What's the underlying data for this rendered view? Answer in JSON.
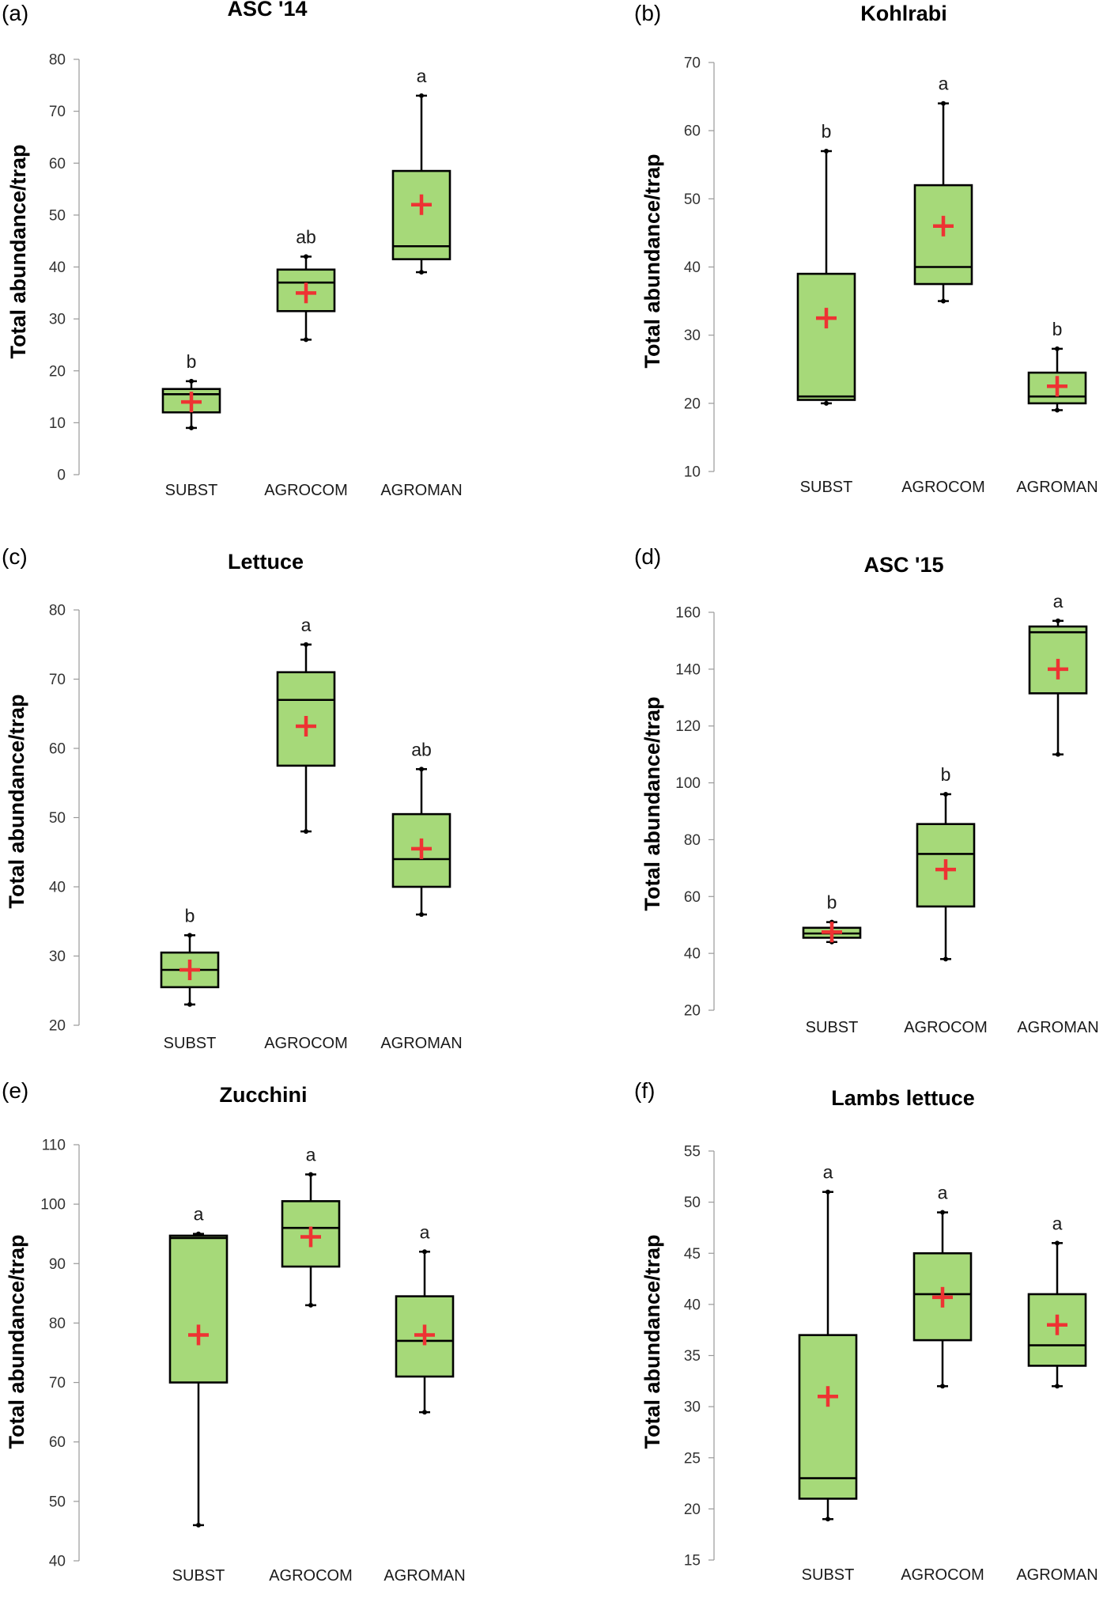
{
  "figure": {
    "y_axis_title": "Total abundance/trap",
    "categories": [
      "SUBST",
      "AGROCOM",
      "AGROMAN"
    ]
  },
  "colors": {
    "box_fill": "#a6d979",
    "box_stroke": "#000000",
    "mean_marker": "#ee3333",
    "axis": "#999999"
  },
  "chart_data": [
    {
      "type": "boxplot",
      "panel": "(a)",
      "title": "ASC '14",
      "ylabel": "Total abundance/trap",
      "ylim": [
        0,
        80
      ],
      "yticks": [
        0,
        10,
        20,
        30,
        40,
        50,
        60,
        70,
        80
      ],
      "categories": [
        "SUBST",
        "AGROCOM",
        "AGROMAN"
      ],
      "boxes": [
        {
          "category": "SUBST",
          "min": 9,
          "q1": 12,
          "median": 15.5,
          "q3": 16.5,
          "max": 18,
          "mean": 14,
          "sig": "b"
        },
        {
          "category": "AGROCOM",
          "min": 26,
          "q1": 31.5,
          "median": 37,
          "q3": 39.5,
          "max": 42,
          "mean": 35,
          "sig": "ab"
        },
        {
          "category": "AGROMAN",
          "min": 39,
          "q1": 41.5,
          "median": 44,
          "q3": 58.5,
          "max": 73,
          "mean": 52,
          "sig": "a"
        }
      ]
    },
    {
      "type": "boxplot",
      "panel": "(b)",
      "title": "Kohlrabi",
      "ylabel": "Total abundance/trap",
      "ylim": [
        10,
        70
      ],
      "yticks": [
        10,
        20,
        30,
        40,
        50,
        60,
        70
      ],
      "categories": [
        "SUBST",
        "AGROCOM",
        "AGROMAN"
      ],
      "boxes": [
        {
          "category": "SUBST",
          "min": 20,
          "q1": 20.5,
          "median": 21,
          "q3": 39,
          "max": 57,
          "mean": 32.5,
          "sig": "b"
        },
        {
          "category": "AGROCOM",
          "min": 35,
          "q1": 37.5,
          "median": 40,
          "q3": 52,
          "max": 64,
          "mean": 46,
          "sig": "a"
        },
        {
          "category": "AGROMAN",
          "min": 19,
          "q1": 20,
          "median": 21,
          "q3": 24.5,
          "max": 28,
          "mean": 22.5,
          "sig": "b"
        }
      ]
    },
    {
      "type": "boxplot",
      "panel": "(c)",
      "title": "Lettuce",
      "ylabel": "Total abundance/trap",
      "ylim": [
        20,
        80
      ],
      "yticks": [
        20,
        30,
        40,
        50,
        60,
        70,
        80
      ],
      "categories": [
        "SUBST",
        "AGROCOM",
        "AGROMAN"
      ],
      "boxes": [
        {
          "category": "SUBST",
          "min": 23,
          "q1": 25.5,
          "median": 28,
          "q3": 30.5,
          "max": 33,
          "mean": 28,
          "sig": "b"
        },
        {
          "category": "AGROCOM",
          "min": 48,
          "q1": 57.5,
          "median": 67,
          "q3": 71,
          "max": 75,
          "mean": 63.2,
          "sig": "a"
        },
        {
          "category": "AGROMAN",
          "min": 36,
          "q1": 40,
          "median": 44,
          "q3": 50.5,
          "max": 57,
          "mean": 45.5,
          "sig": "ab"
        }
      ]
    },
    {
      "type": "boxplot",
      "panel": "(d)",
      "title": "ASC '15",
      "ylabel": "Total abundance/trap",
      "ylim": [
        20,
        160
      ],
      "yticks": [
        20,
        40,
        60,
        80,
        100,
        120,
        140,
        160
      ],
      "categories": [
        "SUBST",
        "AGROCOM",
        "AGROMAN"
      ],
      "boxes": [
        {
          "category": "SUBST",
          "min": 44,
          "q1": 45.5,
          "median": 47,
          "q3": 49,
          "max": 51,
          "mean": 47.5,
          "sig": "b"
        },
        {
          "category": "AGROCOM",
          "min": 38,
          "q1": 56.5,
          "median": 75,
          "q3": 85.5,
          "max": 96,
          "mean": 69.5,
          "sig": "b"
        },
        {
          "category": "AGROMAN",
          "min": 110,
          "q1": 131.5,
          "median": 153,
          "q3": 155,
          "max": 157,
          "mean": 140,
          "sig": "a"
        }
      ]
    },
    {
      "type": "boxplot",
      "panel": "(e)",
      "title": "Zucchini",
      "ylabel": "Total abundance/trap",
      "ylim": [
        40,
        110
      ],
      "yticks": [
        40,
        50,
        60,
        70,
        80,
        90,
        100,
        110
      ],
      "categories": [
        "SUBST",
        "AGROCOM",
        "AGROMAN"
      ],
      "boxes": [
        {
          "category": "SUBST",
          "min": 46,
          "q1": 70,
          "median": 94.3,
          "q3": 94.7,
          "max": 95,
          "mean": 78,
          "sig": "a"
        },
        {
          "category": "AGROCOM",
          "min": 83,
          "q1": 89.5,
          "median": 96,
          "q3": 100.5,
          "max": 105,
          "mean": 94.5,
          "sig": "a"
        },
        {
          "category": "AGROMAN",
          "min": 65,
          "q1": 71,
          "median": 77,
          "q3": 84.5,
          "max": 92,
          "mean": 78,
          "sig": "a"
        }
      ]
    },
    {
      "type": "boxplot",
      "panel": "(f)",
      "title": "Lambs lettuce",
      "ylabel": "Total abundance/trap",
      "ylim": [
        15,
        55
      ],
      "yticks": [
        15,
        20,
        25,
        30,
        35,
        40,
        45,
        50,
        55
      ],
      "categories": [
        "SUBST",
        "AGROCOM",
        "AGROMAN"
      ],
      "boxes": [
        {
          "category": "SUBST",
          "min": 19,
          "q1": 21,
          "median": 23,
          "q3": 37,
          "max": 51,
          "mean": 31,
          "sig": "a"
        },
        {
          "category": "AGROCOM",
          "min": 32,
          "q1": 36.5,
          "median": 41,
          "q3": 45,
          "max": 49,
          "mean": 40.7,
          "sig": "a"
        },
        {
          "category": "AGROMAN",
          "min": 32,
          "q1": 34,
          "median": 36,
          "q3": 41,
          "max": 46,
          "mean": 38,
          "sig": "a"
        }
      ]
    }
  ]
}
